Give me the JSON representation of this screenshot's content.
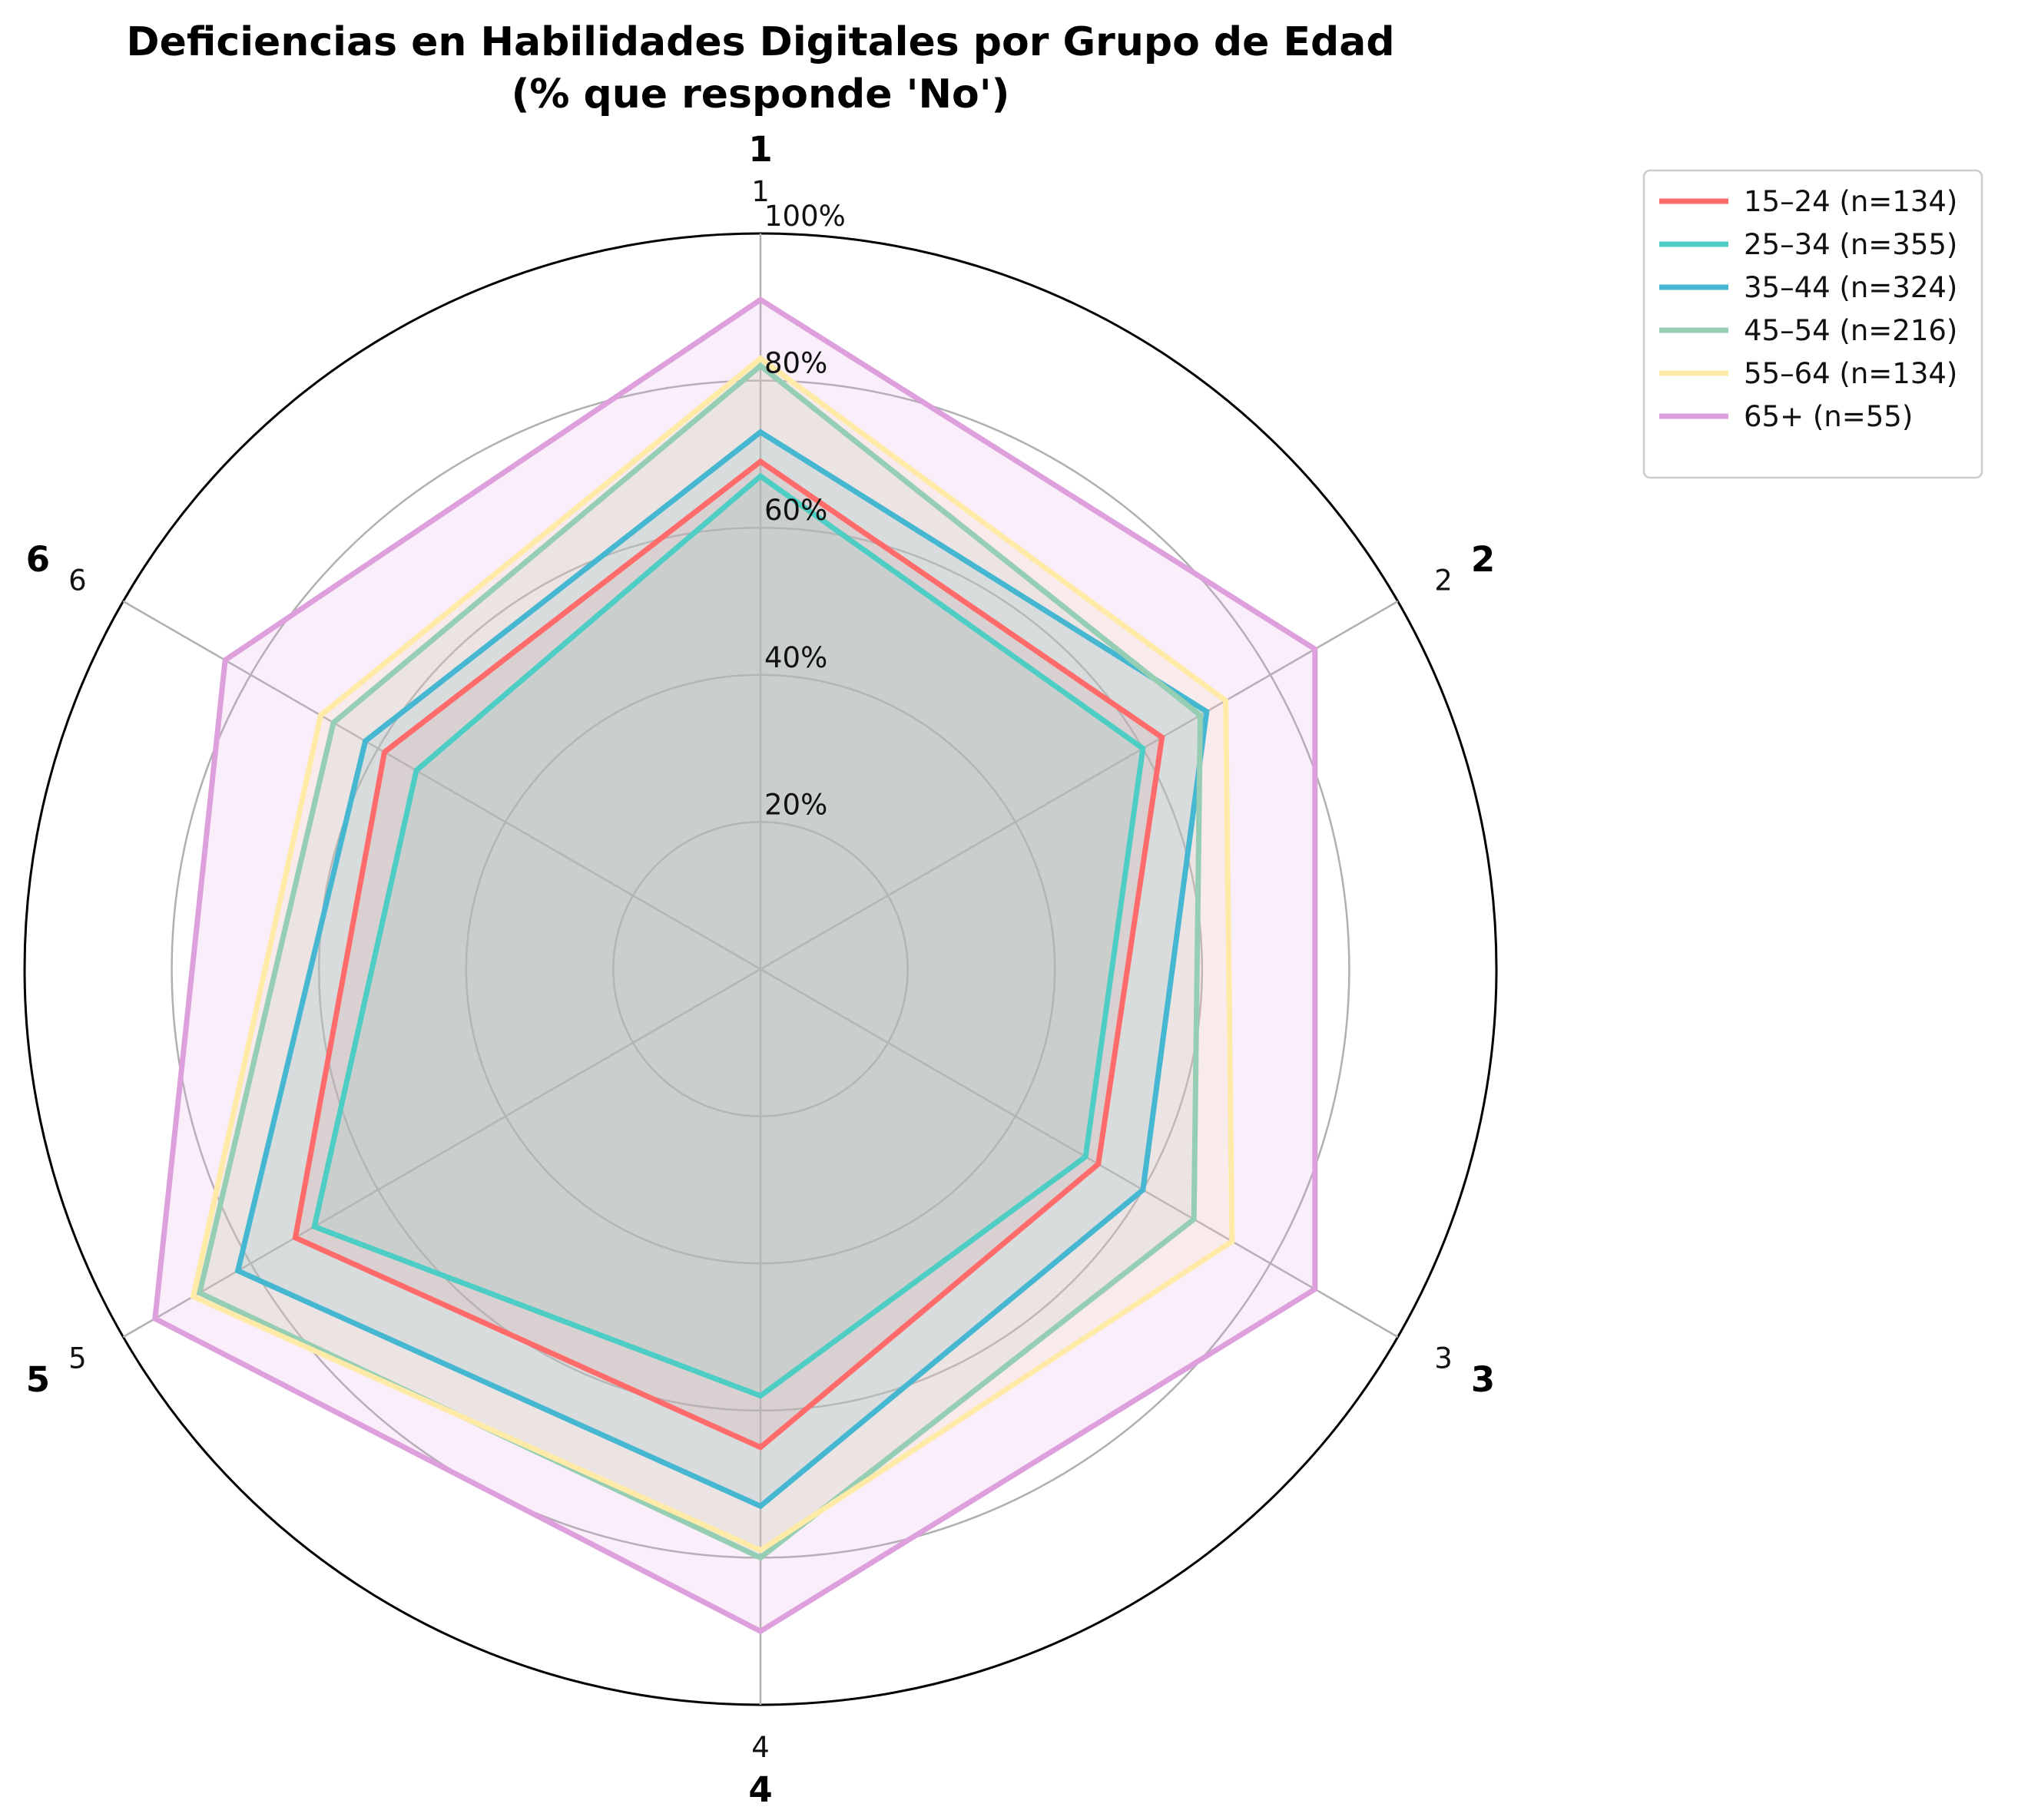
{
  "chart_data": {
    "type": "radar",
    "title": "Deficiencias en Habilidades Digitales por Grupo de Edad",
    "subtitle": "(% que responde 'No')",
    "categories": [
      "1",
      "2",
      "3",
      "4",
      "5",
      "6"
    ],
    "r_range": [
      0,
      100
    ],
    "r_ticks": [
      20,
      40,
      60,
      80,
      100
    ],
    "r_tick_labels": [
      "20%",
      "40%",
      "60%",
      "80%",
      "100%"
    ],
    "grid": true,
    "legend_position": "outside-top-right",
    "series": [
      {
        "name": "15–24 (n=134)",
        "color": "#FF6B6B",
        "values": [
          69,
          63,
          53,
          65,
          73,
          59
        ]
      },
      {
        "name": "25–34 (n=355)",
        "color": "#4ECDC4",
        "values": [
          67,
          60,
          51,
          58,
          70,
          54
        ]
      },
      {
        "name": "35–44 (n=324)",
        "color": "#45B7D1",
        "values": [
          73,
          70,
          60,
          73,
          82,
          62
        ]
      },
      {
        "name": "45–54 (n=216)",
        "color": "#96CEB4",
        "values": [
          82,
          69,
          68,
          80,
          88,
          67
        ]
      },
      {
        "name": "55–64 (n=134)",
        "color": "#FFEAA7",
        "values": [
          83,
          73,
          74,
          79,
          89,
          69
        ]
      },
      {
        "name": "65+ (n=55)",
        "color": "#DDA0DD",
        "values": [
          91,
          87,
          87,
          90,
          95,
          84
        ]
      }
    ]
  }
}
